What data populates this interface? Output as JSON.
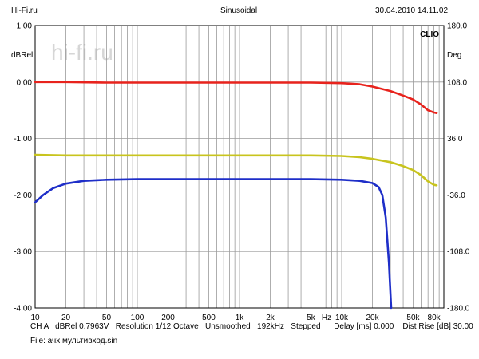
{
  "header": {
    "site": "Hi-Fi.ru",
    "mode": "Sinusoidal",
    "datetime": "30.04.2010 14.11.02"
  },
  "watermark": "hi-fi.ru",
  "brand": "CLIO",
  "footer": {
    "info": "CH A   dBRel 0.7963V   Resolution 1/12 Octave   Unsmoothed   192kHz   Stepped      Delay [ms] 0.000    Dist Rise [dB] 30.00",
    "file": "File: ачх мультивход.sin"
  },
  "chart_data": {
    "type": "line",
    "left_axis": {
      "label": "dBRel",
      "range": [
        -4.0,
        1.0
      ],
      "ticks": [
        "1.00",
        "0.00",
        "-1.00",
        "-2.00",
        "-3.00",
        "-4.00"
      ]
    },
    "right_axis": {
      "label": "Deg",
      "range": [
        -180.0,
        180.0
      ],
      "ticks": [
        "180.0",
        "108.0",
        "36.0",
        "-36.0",
        "-108.0",
        "-180.0"
      ]
    },
    "x_axis": {
      "label": "Hz",
      "scale": "log",
      "range": [
        10,
        100000
      ],
      "tick_labels": [
        {
          "v": 10,
          "t": "10"
        },
        {
          "v": 20,
          "t": "20"
        },
        {
          "v": 50,
          "t": "50"
        },
        {
          "v": 100,
          "t": "100"
        },
        {
          "v": 200,
          "t": "200"
        },
        {
          "v": 500,
          "t": "500"
        },
        {
          "v": 1000,
          "t": "1k"
        },
        {
          "v": 2000,
          "t": "2k"
        },
        {
          "v": 5000,
          "t": "5k"
        },
        {
          "v": 10000,
          "t": "10k"
        },
        {
          "v": 20000,
          "t": "20k"
        },
        {
          "v": 50000,
          "t": "50k"
        },
        {
          "v": 80000,
          "t": "80k"
        }
      ]
    },
    "grid": true,
    "series": [
      {
        "color": "#e8231d",
        "points": [
          [
            10,
            0.0
          ],
          [
            20,
            0.0
          ],
          [
            50,
            -0.01
          ],
          [
            100,
            -0.01
          ],
          [
            500,
            -0.01
          ],
          [
            1000,
            -0.01
          ],
          [
            5000,
            -0.01
          ],
          [
            10000,
            -0.02
          ],
          [
            15000,
            -0.04
          ],
          [
            20000,
            -0.08
          ],
          [
            30000,
            -0.16
          ],
          [
            40000,
            -0.24
          ],
          [
            50000,
            -0.31
          ],
          [
            60000,
            -0.4
          ],
          [
            70000,
            -0.5
          ],
          [
            80000,
            -0.54
          ],
          [
            85000,
            -0.55
          ]
        ]
      },
      {
        "color": "#c8c41e",
        "points": [
          [
            10,
            -1.29
          ],
          [
            20,
            -1.3
          ],
          [
            100,
            -1.3
          ],
          [
            1000,
            -1.3
          ],
          [
            5000,
            -1.3
          ],
          [
            10000,
            -1.31
          ],
          [
            15000,
            -1.33
          ],
          [
            20000,
            -1.36
          ],
          [
            30000,
            -1.42
          ],
          [
            40000,
            -1.49
          ],
          [
            50000,
            -1.56
          ],
          [
            60000,
            -1.65
          ],
          [
            70000,
            -1.76
          ],
          [
            80000,
            -1.82
          ],
          [
            85000,
            -1.83
          ]
        ]
      },
      {
        "color": "#1e2ec8",
        "points": [
          [
            10,
            -2.13
          ],
          [
            12,
            -2.0
          ],
          [
            15,
            -1.88
          ],
          [
            20,
            -1.8
          ],
          [
            30,
            -1.75
          ],
          [
            50,
            -1.73
          ],
          [
            100,
            -1.72
          ],
          [
            1000,
            -1.72
          ],
          [
            5000,
            -1.72
          ],
          [
            10000,
            -1.73
          ],
          [
            15000,
            -1.75
          ],
          [
            20000,
            -1.79
          ],
          [
            23000,
            -1.86
          ],
          [
            25000,
            -2.0
          ],
          [
            27000,
            -2.4
          ],
          [
            29000,
            -3.2
          ],
          [
            30500,
            -4.0
          ]
        ]
      }
    ]
  }
}
